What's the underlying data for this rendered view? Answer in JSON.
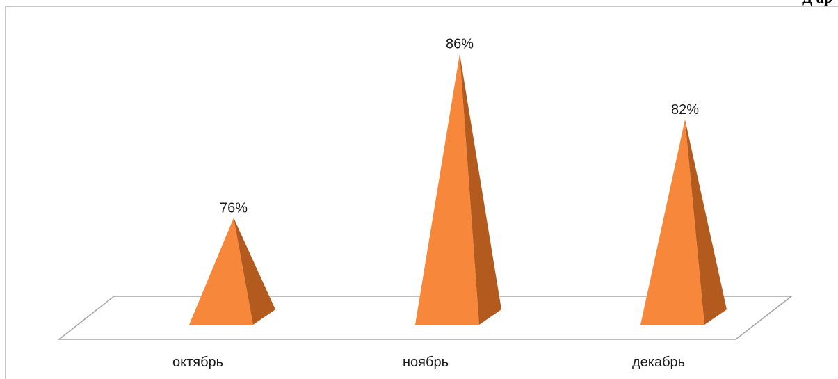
{
  "page": {
    "corner_text": "Д ар"
  },
  "colors": {
    "pyramid_front": "#F7873A",
    "pyramid_side": "#B35A1F",
    "floor_stroke": "#A6A6A6",
    "frame_stroke": "#8C8C8C"
  },
  "chart_data": {
    "type": "bar",
    "style": "3d-pyramid",
    "title": "",
    "xlabel": "",
    "ylabel": "",
    "categories": [
      "октябрь",
      "ноябрь",
      "декабрь"
    ],
    "values": [
      76,
      86,
      82
    ],
    "value_labels": [
      "76%",
      "86%",
      "82%"
    ],
    "unit": "%",
    "grid": false,
    "legend": "none"
  }
}
